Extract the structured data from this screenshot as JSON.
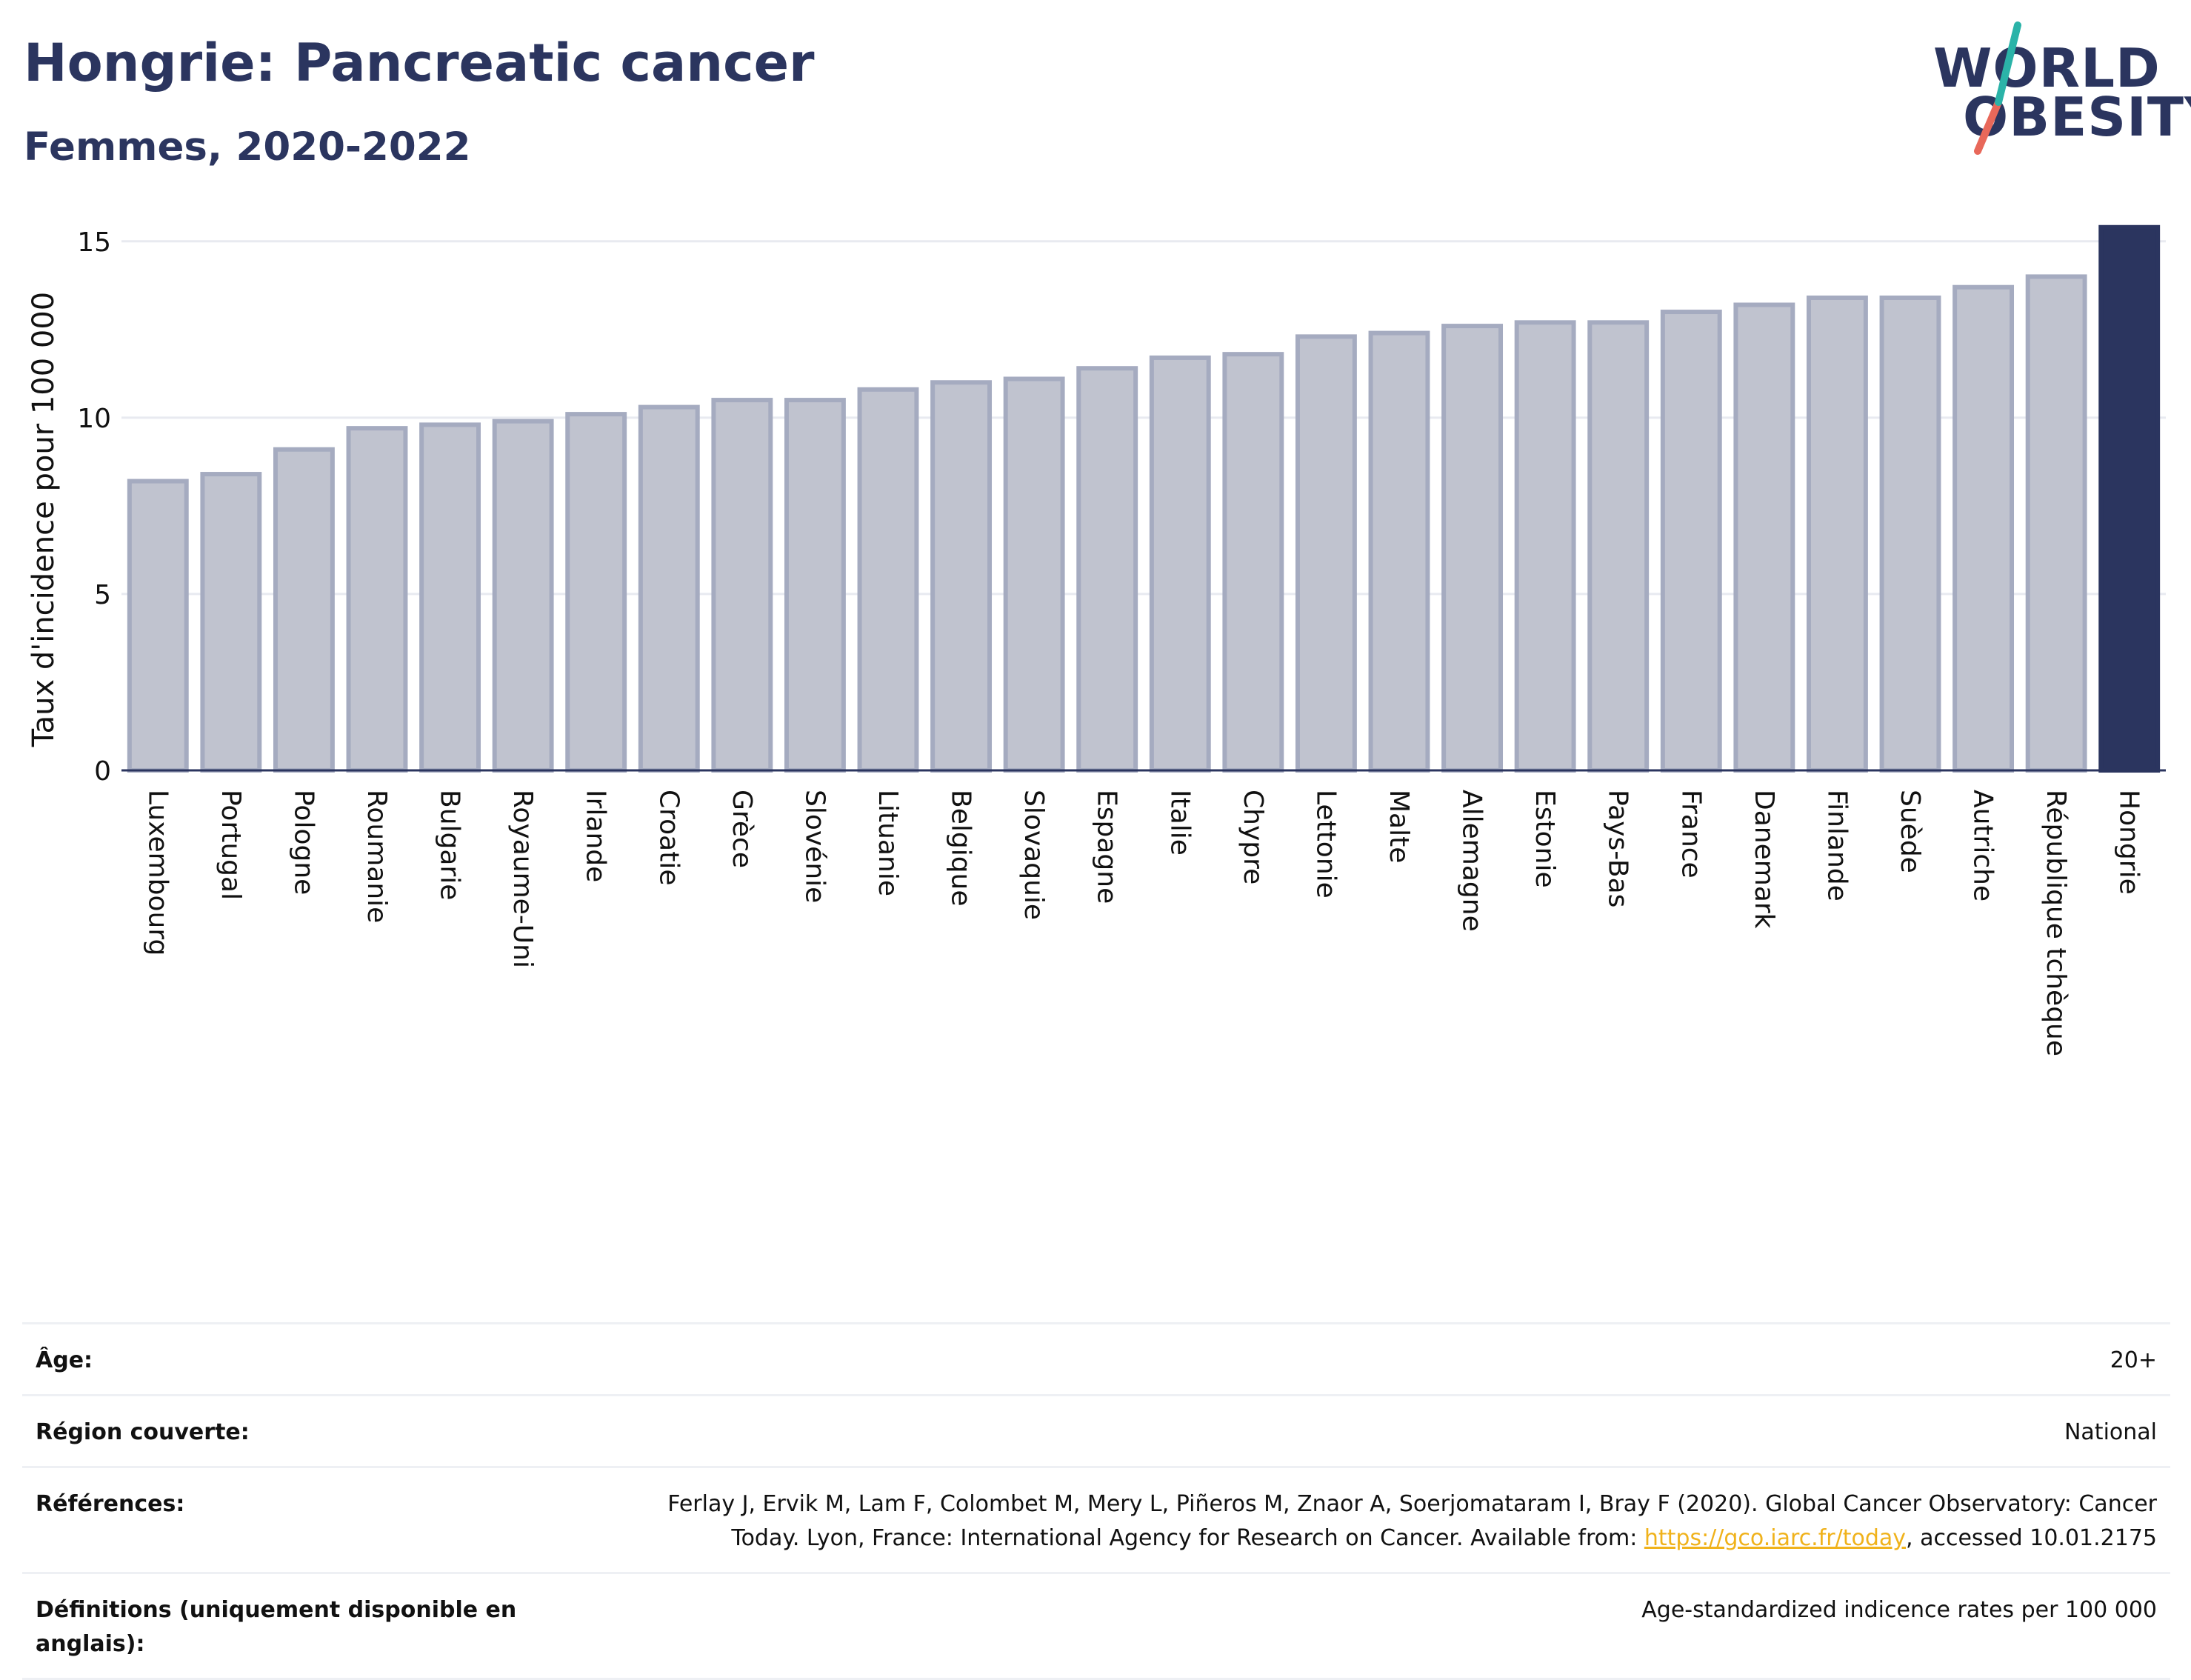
{
  "header": {
    "title": "Hongrie: Pancreatic cancer",
    "subtitle": "Femmes, 2020-2022"
  },
  "logo": {
    "line1": "WORLD",
    "line2": "OBESITY"
  },
  "colors": {
    "bar": "#c0c3cf",
    "bar_border": "#a5abc0",
    "highlight": "#2b355f",
    "grid": "#e8eaf0",
    "axis": "#2b355f"
  },
  "chart_data": {
    "type": "bar",
    "ylabel": "Taux d'incidence pour 100 000",
    "ylim": [
      0,
      15.5
    ],
    "yticks": [
      0,
      5,
      10,
      15
    ],
    "highlight": "Hongrie",
    "categories": [
      "Luxembourg",
      "Portugal",
      "Pologne",
      "Roumanie",
      "Bulgarie",
      "Royaume-Uni",
      "Irlande",
      "Croatie",
      "Grèce",
      "Slovénie",
      "Lituanie",
      "Belgique",
      "Slovaquie",
      "Espagne",
      "Italie",
      "Chypre",
      "Lettonie",
      "Malte",
      "Allemagne",
      "Estonie",
      "Pays-Bas",
      "France",
      "Danemark",
      "Finlande",
      "Suède",
      "Autriche",
      "République tchèque",
      "Hongrie"
    ],
    "values": [
      8.2,
      8.4,
      9.1,
      9.7,
      9.8,
      9.9,
      10.1,
      10.3,
      10.5,
      10.5,
      10.8,
      11.0,
      11.1,
      11.4,
      11.7,
      11.8,
      12.3,
      12.4,
      12.6,
      12.7,
      12.7,
      13.0,
      13.2,
      13.4,
      13.4,
      13.7,
      14.0,
      15.4
    ]
  },
  "meta": {
    "age_label": "Âge:",
    "age_value": "20+",
    "region_label": "Région couverte:",
    "region_value": "National",
    "refs_label": "Références:",
    "refs_line1": "Ferlay J, Ervik M, Lam F, Colombet M, Mery L, Piñeros M, Znaor A, Soerjomataram I, Bray F (2020). Global Cancer Observatory: Cancer",
    "refs_line2a": "Today. Lyon, France: International Agency for Research on Cancer. Available from: ",
    "refs_link": "https://gco.iarc.fr/today",
    "refs_line2b": ", accessed 10.01.2175",
    "defs_label": "Définitions (uniquement disponible en anglais):",
    "defs_value": "Age-standardized indicence rates per 100 000"
  }
}
